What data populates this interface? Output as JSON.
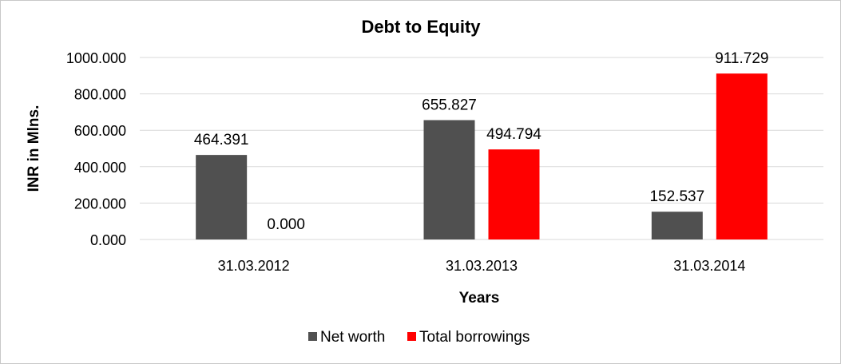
{
  "chart_data": {
    "type": "bar",
    "title": "Debt to Equity",
    "xlabel": "Years",
    "ylabel": "INR in Mlns.",
    "categories": [
      "31.03.2012",
      "31.03.2013",
      "31.03.2014"
    ],
    "series": [
      {
        "name": "Net worth",
        "color": "#505050",
        "values": [
          464.391,
          655.827,
          152.537
        ],
        "labels": [
          "464.391",
          "655.827",
          "152.537"
        ]
      },
      {
        "name": "Total borrowings",
        "color": "#ff0000",
        "values": [
          0.0,
          494.794,
          911.729
        ],
        "labels": [
          "0.000",
          "494.794",
          "911.729"
        ]
      }
    ],
    "ylim": [
      0,
      1000
    ],
    "yticks": [
      0,
      200,
      400,
      600,
      800,
      1000
    ],
    "ytick_labels": [
      "0.000",
      "200.000",
      "400.000",
      "600.000",
      "800.000",
      "1000.000"
    ],
    "grid": true,
    "legend_position": "bottom"
  }
}
